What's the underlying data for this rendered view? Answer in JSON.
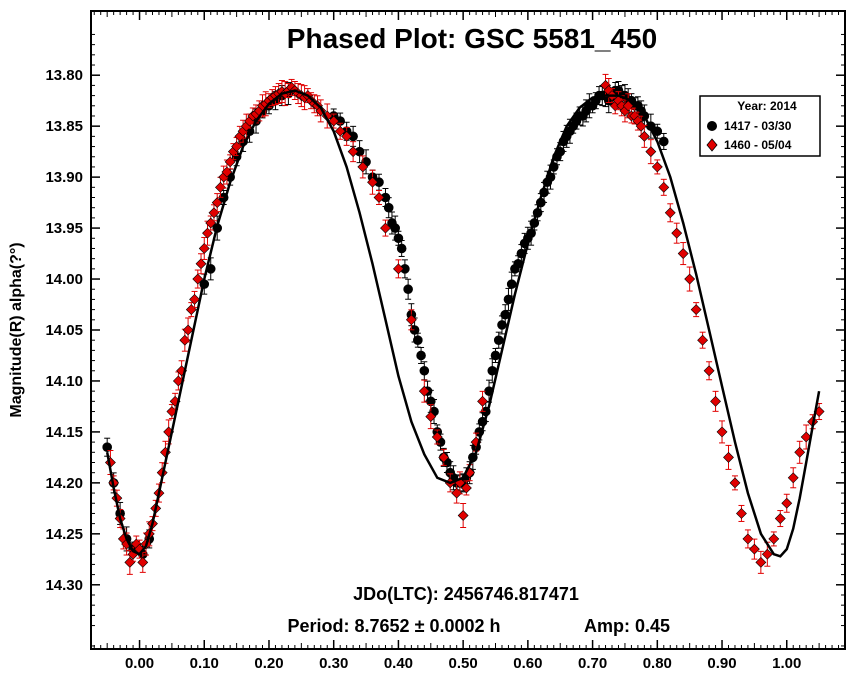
{
  "chart_data": {
    "type": "scatter",
    "title": "Phased Plot: GSC 5581_450",
    "ylabel": "Magnitude(R) alpha(?°)",
    "xlabel": "",
    "xlim": [
      -0.075,
      1.09
    ],
    "ylim": [
      14.363,
      13.737
    ],
    "y_inverted": true,
    "x_ticks": [
      0.0,
      0.1,
      0.2,
      0.3,
      0.4,
      0.5,
      0.6,
      0.7,
      0.8,
      0.9,
      1.0
    ],
    "x_tick_labels": [
      "0.00",
      "0.10",
      "0.20",
      "0.30",
      "0.40",
      "0.50",
      "0.60",
      "0.70",
      "0.80",
      "0.90",
      "1.00"
    ],
    "y_ticks": [
      13.8,
      13.85,
      13.9,
      13.95,
      14.0,
      14.05,
      14.1,
      14.15,
      14.2,
      14.25,
      14.3
    ],
    "y_tick_labels": [
      "13.80",
      "13.85",
      "13.90",
      "13.95",
      "14.00",
      "14.05",
      "14.10",
      "14.15",
      "14.20",
      "14.25",
      "14.30"
    ],
    "grid": false,
    "legend_position": "top-right",
    "legend_title": "Year: 2014",
    "annotations": {
      "jdo": "JDo(LTC): 2456746.817471",
      "period": "Period: 8.7652 ± 0.0002 h",
      "amp": "Amp: 0.45"
    },
    "fit_curve": {
      "name": "",
      "color": "#000000",
      "x": [
        -0.05,
        -0.04,
        -0.03,
        -0.02,
        -0.01,
        0.0,
        0.01,
        0.02,
        0.04,
        0.06,
        0.08,
        0.1,
        0.12,
        0.14,
        0.16,
        0.18,
        0.2,
        0.22,
        0.24,
        0.26,
        0.28,
        0.3,
        0.32,
        0.34,
        0.36,
        0.38,
        0.4,
        0.42,
        0.44,
        0.46,
        0.48,
        0.5,
        0.52,
        0.54,
        0.56,
        0.58,
        0.6,
        0.62,
        0.64,
        0.66,
        0.68,
        0.7,
        0.72,
        0.74,
        0.76,
        0.78,
        0.8,
        0.82,
        0.84,
        0.86,
        0.88,
        0.9,
        0.92,
        0.94,
        0.96,
        0.98,
        0.99,
        1.0,
        1.01,
        1.02,
        1.03,
        1.04,
        1.05
      ],
      "y": [
        14.17,
        14.205,
        14.235,
        14.255,
        14.267,
        14.27,
        14.262,
        14.24,
        14.18,
        14.12,
        14.06,
        14.0,
        13.948,
        13.905,
        13.87,
        13.845,
        13.828,
        13.818,
        13.815,
        13.82,
        13.832,
        13.855,
        13.89,
        13.935,
        13.985,
        14.04,
        14.095,
        14.14,
        14.172,
        14.195,
        14.2,
        14.195,
        14.17,
        14.125,
        14.07,
        14.015,
        13.965,
        13.92,
        13.88,
        13.85,
        13.832,
        13.822,
        13.82,
        13.82,
        13.825,
        13.84,
        13.865,
        13.9,
        13.945,
        13.995,
        14.05,
        14.105,
        14.16,
        14.21,
        14.25,
        14.27,
        14.272,
        14.265,
        14.245,
        14.215,
        14.18,
        14.145,
        14.11
      ]
    },
    "series": [
      {
        "name": "1417 - 03/30",
        "marker": "circle",
        "color": "#000000",
        "x": [
          0.3,
          0.31,
          0.32,
          0.33,
          0.34,
          0.35,
          0.36,
          0.37,
          0.38,
          0.385,
          0.39,
          0.395,
          0.4,
          0.405,
          0.41,
          0.415,
          0.42,
          0.425,
          0.43,
          0.435,
          0.44,
          0.445,
          0.45,
          0.455,
          0.46,
          0.465,
          0.47,
          0.475,
          0.48,
          0.485,
          0.49,
          0.495,
          0.5,
          0.505,
          0.51,
          0.515,
          0.52,
          0.525,
          0.53,
          0.535,
          0.54,
          0.545,
          0.55,
          0.555,
          0.56,
          0.565,
          0.57,
          0.575,
          0.58,
          0.585,
          0.59,
          0.595,
          0.6,
          0.605,
          0.61,
          0.615,
          0.62,
          0.625,
          0.63,
          0.635,
          0.64,
          0.645,
          0.65,
          0.655,
          0.66,
          0.665,
          0.67,
          0.675,
          0.68,
          0.685,
          0.69,
          0.695,
          0.7,
          0.705,
          0.71,
          0.715,
          0.72,
          0.725,
          0.73,
          0.735,
          0.74,
          0.745,
          0.75,
          0.755,
          0.76,
          0.765,
          0.77,
          0.775,
          0.78,
          0.79,
          0.8,
          0.81,
          -0.05,
          -0.04,
          -0.03,
          -0.02,
          -0.01,
          0.005,
          0.015,
          0.1,
          0.11,
          0.12,
          0.13,
          0.14,
          0.15,
          0.16,
          0.17,
          0.18,
          0.19,
          0.2,
          0.21,
          0.22,
          0.23
        ],
        "y": [
          13.84,
          13.845,
          13.855,
          13.86,
          13.875,
          13.885,
          13.9,
          13.905,
          13.92,
          13.93,
          13.945,
          13.95,
          13.96,
          13.97,
          13.99,
          14.01,
          14.035,
          14.05,
          14.06,
          14.075,
          14.09,
          14.11,
          14.12,
          14.13,
          14.15,
          14.16,
          14.175,
          14.18,
          14.19,
          14.195,
          14.2,
          14.2,
          14.2,
          14.195,
          14.19,
          14.175,
          14.165,
          14.15,
          14.14,
          14.13,
          14.11,
          14.09,
          14.075,
          14.06,
          14.045,
          14.035,
          14.02,
          14.005,
          13.99,
          13.985,
          13.975,
          13.965,
          13.96,
          13.955,
          13.945,
          13.935,
          13.925,
          13.915,
          13.905,
          13.9,
          13.89,
          13.88,
          13.875,
          13.865,
          13.86,
          13.855,
          13.85,
          13.845,
          13.84,
          13.84,
          13.835,
          13.83,
          13.83,
          13.825,
          13.82,
          13.82,
          13.82,
          13.825,
          13.82,
          13.815,
          13.815,
          13.82,
          13.82,
          13.825,
          13.825,
          13.83,
          13.83,
          13.835,
          13.84,
          13.85,
          13.855,
          13.865,
          14.165,
          14.2,
          14.23,
          14.255,
          14.265,
          14.27,
          14.255,
          14.005,
          13.99,
          13.95,
          13.92,
          13.9,
          13.88,
          13.865,
          13.855,
          13.845,
          13.835,
          13.83,
          13.825,
          13.82,
          13.818
        ]
      },
      {
        "name": "1460 - 05/04",
        "marker": "diamond",
        "color": "#e00000",
        "x": [
          -0.045,
          -0.04,
          -0.035,
          -0.03,
          -0.025,
          -0.02,
          -0.015,
          -0.01,
          -0.005,
          0.0,
          0.005,
          0.01,
          0.015,
          0.02,
          0.025,
          0.03,
          0.035,
          0.04,
          0.045,
          0.05,
          0.055,
          0.06,
          0.065,
          0.07,
          0.075,
          0.08,
          0.085,
          0.09,
          0.095,
          0.1,
          0.105,
          0.11,
          0.115,
          0.12,
          0.125,
          0.13,
          0.135,
          0.14,
          0.145,
          0.15,
          0.155,
          0.16,
          0.165,
          0.17,
          0.175,
          0.18,
          0.185,
          0.19,
          0.195,
          0.2,
          0.205,
          0.21,
          0.215,
          0.22,
          0.225,
          0.23,
          0.235,
          0.24,
          0.245,
          0.25,
          0.255,
          0.26,
          0.265,
          0.27,
          0.275,
          0.28,
          0.29,
          0.3,
          0.31,
          0.32,
          0.33,
          0.345,
          0.36,
          0.37,
          0.38,
          0.4,
          0.42,
          0.44,
          0.45,
          0.46,
          0.47,
          0.48,
          0.49,
          0.495,
          0.5,
          0.505,
          0.51,
          0.52,
          0.53,
          0.72,
          0.725,
          0.73,
          0.735,
          0.74,
          0.745,
          0.75,
          0.755,
          0.76,
          0.765,
          0.77,
          0.775,
          0.78,
          0.79,
          0.8,
          0.81,
          0.82,
          0.83,
          0.84,
          0.85,
          0.86,
          0.87,
          0.88,
          0.89,
          0.9,
          0.91,
          0.92,
          0.93,
          0.94,
          0.95,
          0.96,
          0.97,
          0.98,
          0.99,
          1.0,
          1.01,
          1.02,
          1.03,
          1.04,
          1.05
        ],
        "y": [
          14.18,
          14.2,
          14.215,
          14.235,
          14.255,
          14.26,
          14.278,
          14.27,
          14.26,
          14.265,
          14.278,
          14.26,
          14.25,
          14.24,
          14.225,
          14.21,
          14.19,
          14.17,
          14.15,
          14.13,
          14.12,
          14.1,
          14.09,
          14.06,
          14.05,
          14.03,
          14.02,
          14.0,
          13.985,
          13.97,
          13.955,
          13.945,
          13.935,
          13.925,
          13.91,
          13.9,
          13.895,
          13.885,
          13.875,
          13.87,
          13.86,
          13.855,
          13.85,
          13.845,
          13.84,
          13.838,
          13.835,
          13.83,
          13.828,
          13.825,
          13.822,
          13.82,
          13.818,
          13.816,
          13.818,
          13.815,
          13.812,
          13.815,
          13.818,
          13.82,
          13.822,
          13.82,
          13.825,
          13.828,
          13.83,
          13.835,
          13.84,
          13.845,
          13.855,
          13.86,
          13.875,
          13.89,
          13.905,
          13.92,
          13.95,
          13.99,
          14.04,
          14.11,
          14.135,
          14.155,
          14.175,
          14.2,
          14.21,
          14.2,
          14.232,
          14.205,
          14.19,
          14.16,
          14.12,
          13.81,
          13.815,
          13.82,
          13.83,
          13.825,
          13.83,
          13.835,
          13.83,
          13.84,
          13.84,
          13.845,
          13.85,
          13.86,
          13.875,
          13.89,
          13.91,
          13.935,
          13.955,
          13.975,
          14.0,
          14.03,
          14.06,
          14.09,
          14.12,
          14.15,
          14.175,
          14.2,
          14.23,
          14.255,
          14.265,
          14.278,
          14.27,
          14.255,
          14.235,
          14.22,
          14.195,
          14.17,
          14.155,
          14.14,
          14.13
        ]
      }
    ]
  }
}
